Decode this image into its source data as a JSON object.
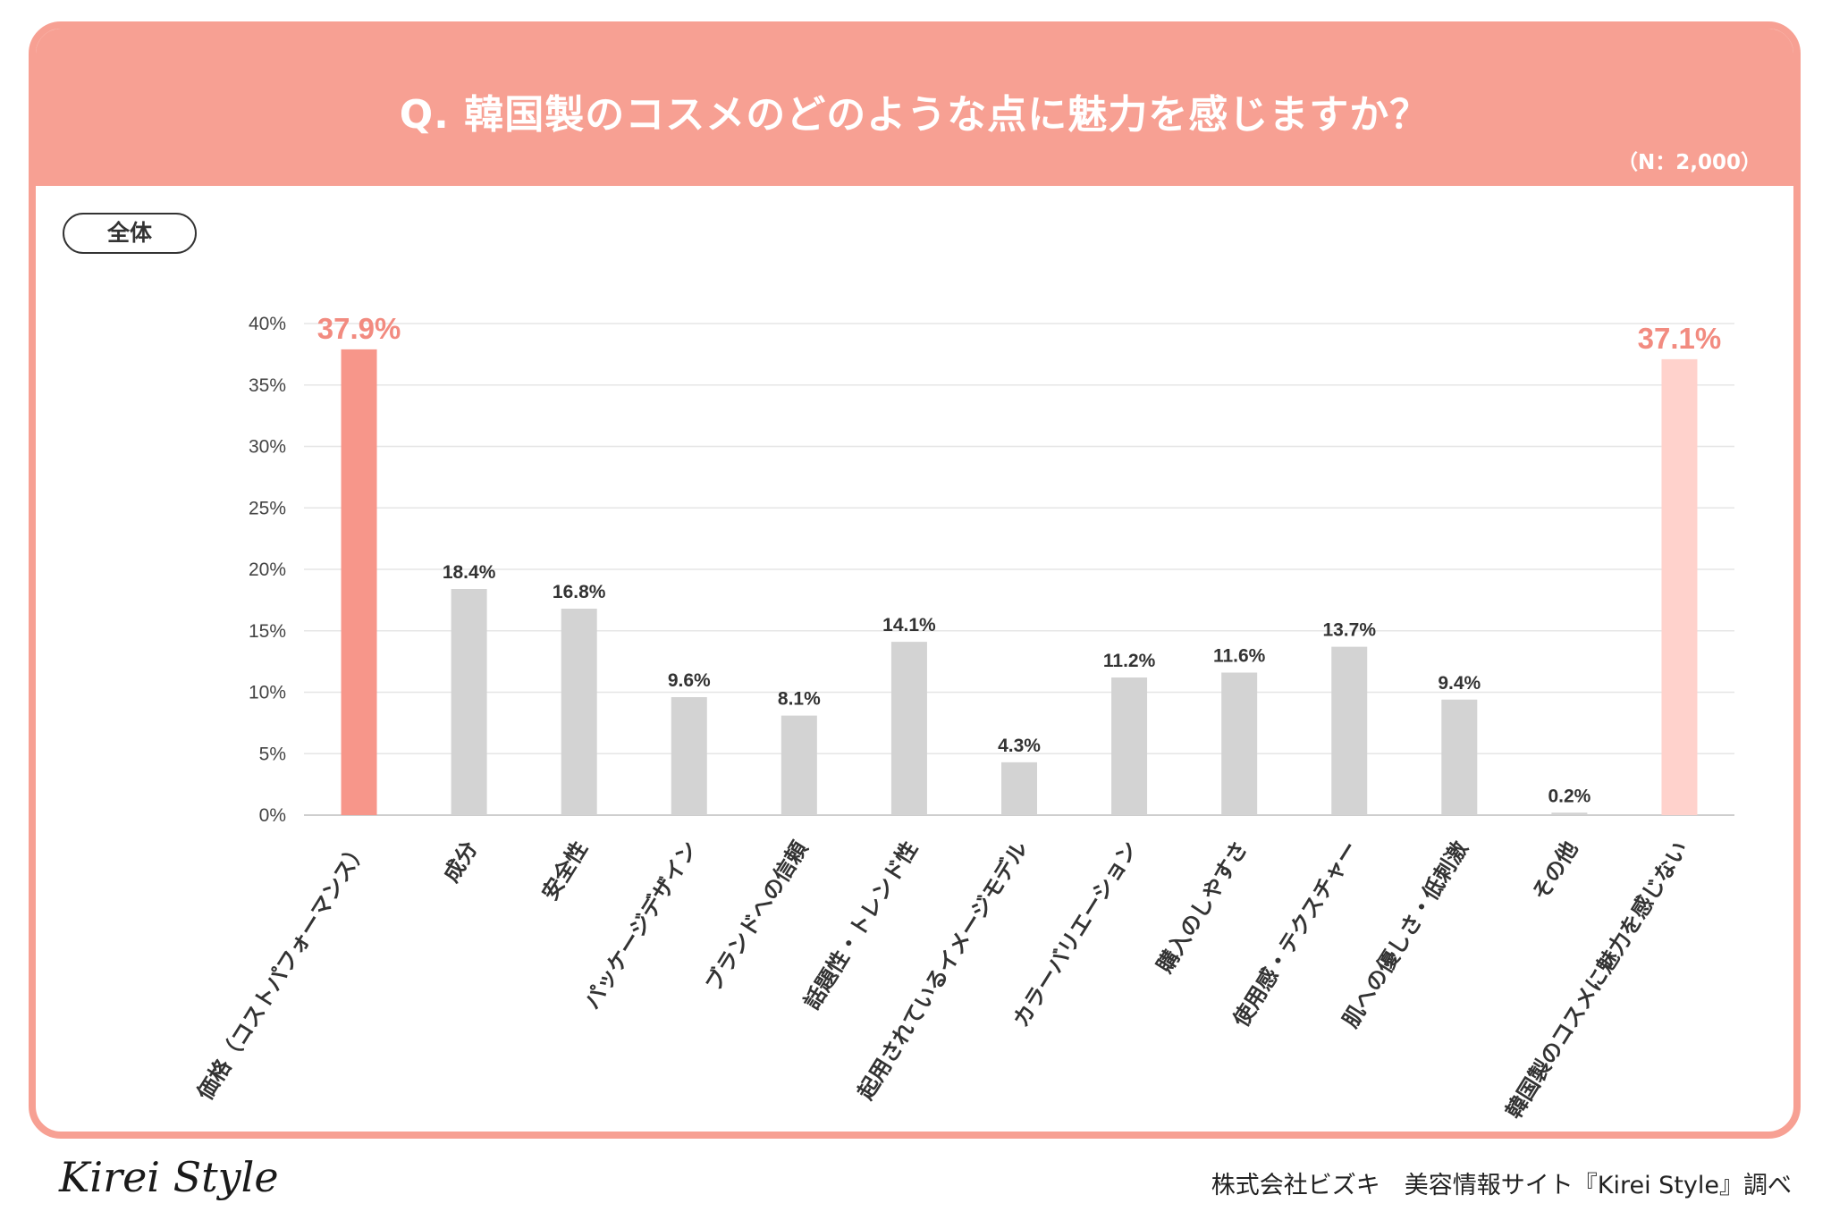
{
  "header": {
    "title": "Q. 韓国製のコスメのどのような点に魅力を感じますか？",
    "sample": "（N：2,000）"
  },
  "segment": {
    "label": "全体"
  },
  "footer": {
    "logo": "Kirei Style",
    "credit": "株式会社ビズキ　美容情報サイト『Kirei Style』調べ"
  },
  "colors": {
    "header_bg": "#f7a093",
    "highlight_bar": "#f7968a",
    "highlight_label": "#f28b80",
    "bar_default": "#d3d3d3",
    "last_bar": "#ffd2cc"
  },
  "chart_data": {
    "type": "bar",
    "categories": [
      "価格（コストパフォーマンス）",
      "成分",
      "安全性",
      "パッケージデザイン",
      "ブランドへの信頼",
      "話題性・トレンド性",
      "起用されているイメージモデル",
      "カラーバリエーション",
      "購入のしやすさ",
      "使用感・テクスチャー",
      "肌への優しさ・低刺激",
      "その他",
      "韓国製のコスメに魅力を感じない"
    ],
    "values": [
      37.9,
      18.4,
      16.8,
      9.6,
      8.1,
      14.1,
      4.3,
      11.2,
      11.6,
      13.7,
      9.4,
      0.2,
      37.1
    ],
    "value_labels": [
      "37.9%",
      "18.4%",
      "16.8%",
      "9.6%",
      "8.1%",
      "14.1%",
      "4.3%",
      "11.2%",
      "11.6%",
      "13.7%",
      "9.4%",
      "0.2%",
      "37.1%"
    ],
    "yticks": [
      "0%",
      "5%",
      "10%",
      "15%",
      "20%",
      "25%",
      "30%",
      "35%",
      "40%"
    ],
    "ylim": [
      0,
      40
    ],
    "grid": true,
    "legend": "none"
  }
}
